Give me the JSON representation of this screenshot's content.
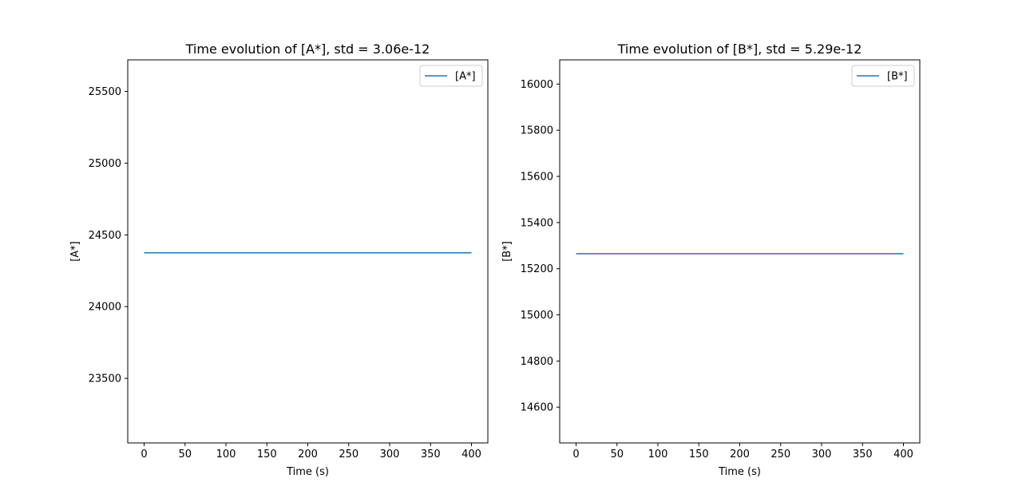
{
  "chart_data": [
    {
      "type": "line",
      "title": "Time evolution of [A*], std = 3.06e-12",
      "xlabel": "Time (s)",
      "ylabel": "[A*]",
      "xlim": [
        -20,
        420
      ],
      "ylim": [
        23050,
        25720
      ],
      "xticks": [
        0,
        50,
        100,
        150,
        200,
        250,
        300,
        350,
        400
      ],
      "yticks": [
        23500,
        24000,
        24500,
        25000,
        25500
      ],
      "legend": "top-right",
      "grid": false,
      "series": [
        {
          "name": "[A*]",
          "color": "#1f77b4",
          "x": [
            0,
            400
          ],
          "y": [
            24375,
            24375
          ]
        }
      ]
    },
    {
      "type": "line",
      "title": "Time evolution of [B*], std = 5.29e-12",
      "xlabel": "Time (s)",
      "ylabel": "[B*]",
      "xlim": [
        -20,
        420
      ],
      "ylim": [
        14445,
        16105
      ],
      "xticks": [
        0,
        50,
        100,
        150,
        200,
        250,
        300,
        350,
        400
      ],
      "yticks": [
        14600,
        14800,
        15000,
        15200,
        15400,
        15600,
        15800,
        16000
      ],
      "legend": "top-right",
      "grid": false,
      "series": [
        {
          "name": "[B*]",
          "color": "#1f77b4",
          "x": [
            0,
            400
          ],
          "y": [
            15265,
            15265
          ]
        }
      ]
    }
  ]
}
